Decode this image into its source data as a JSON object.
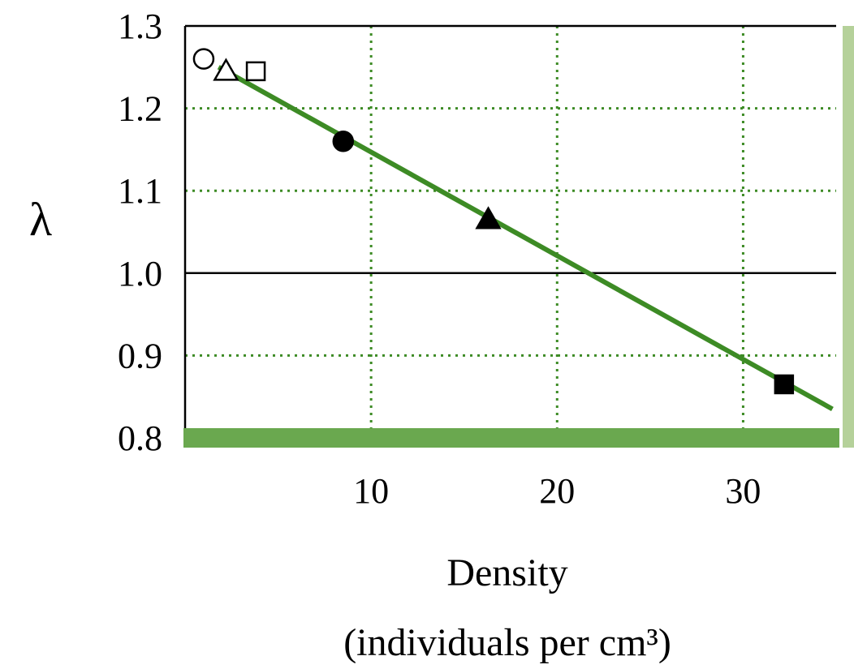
{
  "chart_data": {
    "type": "scatter",
    "xlabel": "Density",
    "xlabel_line2": "(individuals per cm³)",
    "ylabel": "λ",
    "xlim": [
      0,
      35
    ],
    "ylim": [
      0.8,
      1.3
    ],
    "x_ticks": [
      10,
      20,
      30
    ],
    "x_tick_labels": [
      "10",
      "20",
      "30"
    ],
    "y_ticks": [
      0.8,
      0.9,
      1.0,
      1.1,
      1.2,
      1.3
    ],
    "y_tick_labels": [
      "0.8",
      "0.9",
      "1.0",
      "1.1",
      "1.2",
      "1.3"
    ],
    "grid": true,
    "reference_line_y": 1.0,
    "points": [
      {
        "x": 1.0,
        "y": 1.26,
        "marker": "circle",
        "filled": false
      },
      {
        "x": 2.2,
        "y": 1.245,
        "marker": "triangle",
        "filled": false
      },
      {
        "x": 3.8,
        "y": 1.245,
        "marker": "square",
        "filled": false
      },
      {
        "x": 8.5,
        "y": 1.16,
        "marker": "circle",
        "filled": true
      },
      {
        "x": 16.3,
        "y": 1.065,
        "marker": "triangle",
        "filled": true
      },
      {
        "x": 32.2,
        "y": 0.865,
        "marker": "square",
        "filled": true
      }
    ],
    "fit_line": {
      "x": [
        1.8,
        34.8
      ],
      "y": [
        1.25,
        0.835
      ]
    },
    "colors": {
      "fit_line": "#3d8b25",
      "grid": "#3d8b25",
      "x_axis_band": "#6aa84f",
      "right_band": "#b5d19a",
      "axes": "#000000"
    }
  }
}
